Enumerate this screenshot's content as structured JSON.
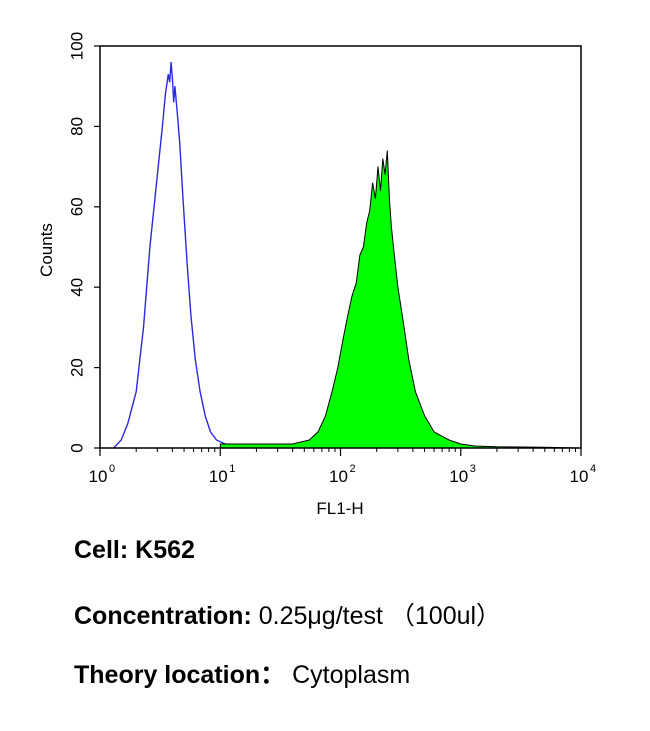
{
  "chart_data": {
    "type": "area",
    "xscale": "log",
    "xlim": [
      1,
      10000
    ],
    "ylim": [
      0,
      100
    ],
    "ylabel": "Counts",
    "xlabel": "FL1-H",
    "x_tick_labels": [
      {
        "base": "10",
        "exp": "0"
      },
      {
        "base": "10",
        "exp": "1"
      },
      {
        "base": "10",
        "exp": "2"
      },
      {
        "base": "10",
        "exp": "3"
      },
      {
        "base": "10",
        "exp": "4"
      }
    ],
    "x_ticks": [
      1,
      10,
      100,
      1000,
      10000
    ],
    "y_ticks": [
      0,
      20,
      40,
      60,
      80,
      100
    ],
    "y_tick_labels": [
      "0",
      "20",
      "40",
      "60",
      "80",
      "100"
    ],
    "grid": false,
    "series": [
      {
        "style": "outline",
        "color": "#2a2ae0",
        "x": [
          1.3,
          1.5,
          1.7,
          2.0,
          2.3,
          2.6,
          3.0,
          3.3,
          3.5,
          3.7,
          3.8,
          3.9,
          4.0,
          4.1,
          4.2,
          4.4,
          4.6,
          4.9,
          5.3,
          5.7,
          6.2,
          6.8,
          7.5,
          8.3,
          9.3,
          11,
          14,
          20,
          30,
          50,
          100
        ],
        "y": [
          0,
          2,
          6,
          14,
          30,
          50,
          68,
          80,
          88,
          93,
          91,
          96,
          92,
          86,
          90,
          83,
          76,
          62,
          46,
          33,
          22,
          14,
          8,
          4,
          2,
          1,
          0.5,
          0.5,
          0.5,
          0.5,
          0
        ]
      },
      {
        "style": "filled",
        "color": "#00ff00",
        "stroke": "#000000",
        "x": [
          10,
          20,
          40,
          55,
          65,
          75,
          85,
          95,
          105,
          115,
          125,
          135,
          145,
          155,
          165,
          175,
          185,
          195,
          205,
          215,
          225,
          235,
          245,
          255,
          265,
          280,
          300,
          330,
          370,
          420,
          500,
          600,
          800,
          1000,
          1300,
          2000,
          5000,
          10000
        ],
        "y": [
          1,
          1,
          1,
          2,
          4,
          8,
          14,
          20,
          27,
          33,
          38,
          41,
          48,
          50,
          56,
          59,
          66,
          62,
          70,
          64,
          72,
          68,
          74,
          62,
          55,
          48,
          40,
          32,
          22,
          14,
          8,
          4,
          2,
          1,
          0.5,
          0.3,
          0.2,
          0
        ]
      }
    ]
  },
  "captions": {
    "cell_label": "Cell:",
    "cell_value": "K562",
    "concentration_label": "Concentration:",
    "concentration_value": "0.25μg/test （100ul）",
    "location_label": "Theory location：",
    "location_value": "Cytoplasm"
  }
}
